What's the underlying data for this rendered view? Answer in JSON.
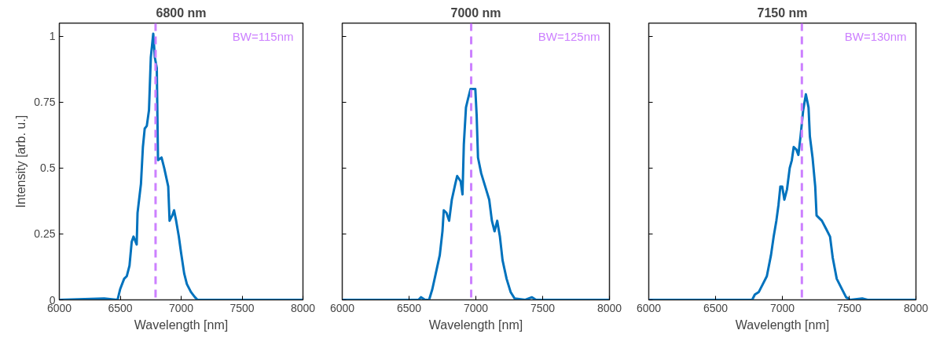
{
  "chart_data": [
    {
      "type": "line",
      "title": "6800 nm",
      "xlabel": "Wavelength [nm]",
      "ylabel": "Intensity [arb. u.]",
      "xlim": [
        6000,
        8000
      ],
      "xticks": [
        6000,
        6500,
        7000,
        7500,
        8000
      ],
      "ylim": [
        0,
        1.05
      ],
      "yticks": [
        0,
        0.25,
        0.5,
        0.75,
        1
      ],
      "grid": false,
      "line_style": "solid",
      "annotations": [
        "BW=115nm"
      ],
      "ref_lines": [
        {
          "axis": "x",
          "value": 6790,
          "color": "#cc80ff",
          "line_style": "dashed"
        }
      ],
      "series": [
        {
          "color": "#0072bd",
          "x": [
            6000,
            6368,
            6478,
            6499,
            6532,
            6554,
            6576,
            6594,
            6609,
            6635,
            6642,
            6670,
            6686,
            6701,
            6718,
            6736,
            6751,
            6771,
            6784,
            6800,
            6810,
            6839,
            6861,
            6894,
            6905,
            6927,
            6942,
            6959,
            6981,
            6999,
            7025,
            7047,
            7080,
            7113,
            7135,
            7222,
            8000
          ],
          "values": [
            0,
            0.005,
            0,
            0.04,
            0.08,
            0.09,
            0.13,
            0.22,
            0.24,
            0.21,
            0.33,
            0.44,
            0.58,
            0.65,
            0.66,
            0.72,
            0.92,
            1.01,
            0.92,
            0.88,
            0.53,
            0.54,
            0.5,
            0.43,
            0.3,
            0.32,
            0.34,
            0.3,
            0.24,
            0.18,
            0.1,
            0.06,
            0.03,
            0.01,
            0,
            0,
            0
          ]
        }
      ]
    },
    {
      "type": "line",
      "title": "7000 nm",
      "xlabel": "Wavelength [nm]",
      "xlim": [
        6000,
        8000
      ],
      "xticks": [
        6000,
        6500,
        7000,
        7500,
        8000
      ],
      "ylim": [
        0,
        1.05
      ],
      "yticks": [
        0,
        0.25,
        0.5,
        0.75,
        1
      ],
      "tick_labels": "x",
      "grid": false,
      "line_style": "solid",
      "annotations": [
        "BW=125nm"
      ],
      "ref_lines": [
        {
          "axis": "x",
          "value": 6965,
          "color": "#cc80ff",
          "line_style": "dashed"
        }
      ],
      "series": [
        {
          "color": "#0072bd",
          "x": [
            6000,
            6570,
            6590,
            6620,
            6650,
            6674,
            6700,
            6730,
            6750,
            6760,
            6780,
            6800,
            6820,
            6846,
            6860,
            6886,
            6900,
            6910,
            6926,
            6940,
            6960,
            6996,
            7006,
            7016,
            7040,
            7070,
            7100,
            7120,
            7140,
            7160,
            7180,
            7200,
            7230,
            7260,
            7290,
            7370,
            7420,
            7450,
            8000
          ],
          "values": [
            0,
            0,
            0.01,
            0,
            0,
            0.04,
            0.1,
            0.17,
            0.26,
            0.34,
            0.33,
            0.3,
            0.38,
            0.44,
            0.47,
            0.45,
            0.4,
            0.59,
            0.73,
            0.76,
            0.8,
            0.8,
            0.7,
            0.54,
            0.48,
            0.43,
            0.38,
            0.3,
            0.26,
            0.3,
            0.24,
            0.15,
            0.08,
            0.03,
            0.005,
            0,
            0.01,
            0,
            0
          ]
        }
      ]
    },
    {
      "type": "line",
      "title": "7150 nm",
      "xlabel": "Wavelength [nm]",
      "xlim": [
        6000,
        8000
      ],
      "xticks": [
        6000,
        6500,
        7000,
        7500,
        8000
      ],
      "ylim": [
        0,
        1.05
      ],
      "yticks": [
        0,
        0.25,
        0.5,
        0.75,
        1
      ],
      "tick_labels": "x",
      "grid": false,
      "line_style": "solid",
      "annotations": [
        "BW=130nm"
      ],
      "ref_lines": [
        {
          "axis": "x",
          "value": 7146,
          "color": "#cc80ff",
          "line_style": "dashed"
        }
      ],
      "series": [
        {
          "color": "#0072bd",
          "x": [
            6000,
            6774,
            6794,
            6824,
            6854,
            6884,
            6915,
            6935,
            6955,
            6971,
            6985,
            6999,
            7015,
            7035,
            7055,
            7071,
            7085,
            7105,
            7120,
            7136,
            7156,
            7176,
            7196,
            7206,
            7226,
            7246,
            7256,
            7296,
            7327,
            7357,
            7377,
            7407,
            7447,
            7477,
            7508,
            7598,
            7638,
            8000
          ],
          "values": [
            0,
            0,
            0.02,
            0.03,
            0.06,
            0.09,
            0.17,
            0.24,
            0.3,
            0.36,
            0.43,
            0.43,
            0.38,
            0.42,
            0.5,
            0.53,
            0.58,
            0.57,
            0.55,
            0.62,
            0.72,
            0.78,
            0.73,
            0.62,
            0.54,
            0.43,
            0.32,
            0.3,
            0.27,
            0.24,
            0.16,
            0.08,
            0.04,
            0.01,
            0,
            0.005,
            0,
            0
          ]
        }
      ]
    }
  ]
}
